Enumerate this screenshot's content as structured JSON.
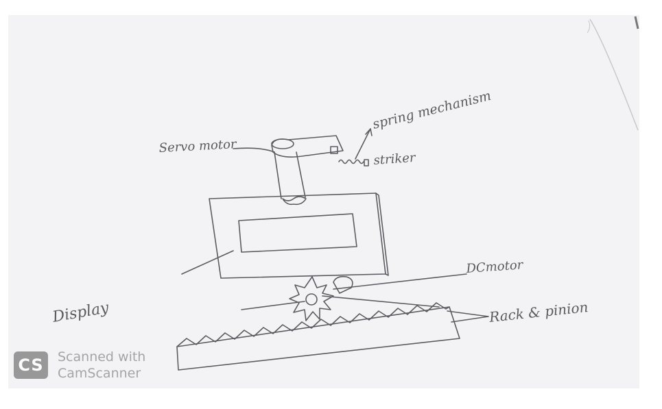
{
  "labels": {
    "servo_motor": "Servo motor",
    "spring_mechanism": "spring mechanism",
    "striker": "striker",
    "display": "Display",
    "dc_motor": "DCmotor",
    "rack_pinion": "Rack & pinion"
  },
  "watermark": {
    "logo": "CS",
    "line1": "Scanned with",
    "line2": "CamScanner"
  },
  "colors": {
    "paper": "#f4f4f6",
    "pencil": "#55555c"
  }
}
